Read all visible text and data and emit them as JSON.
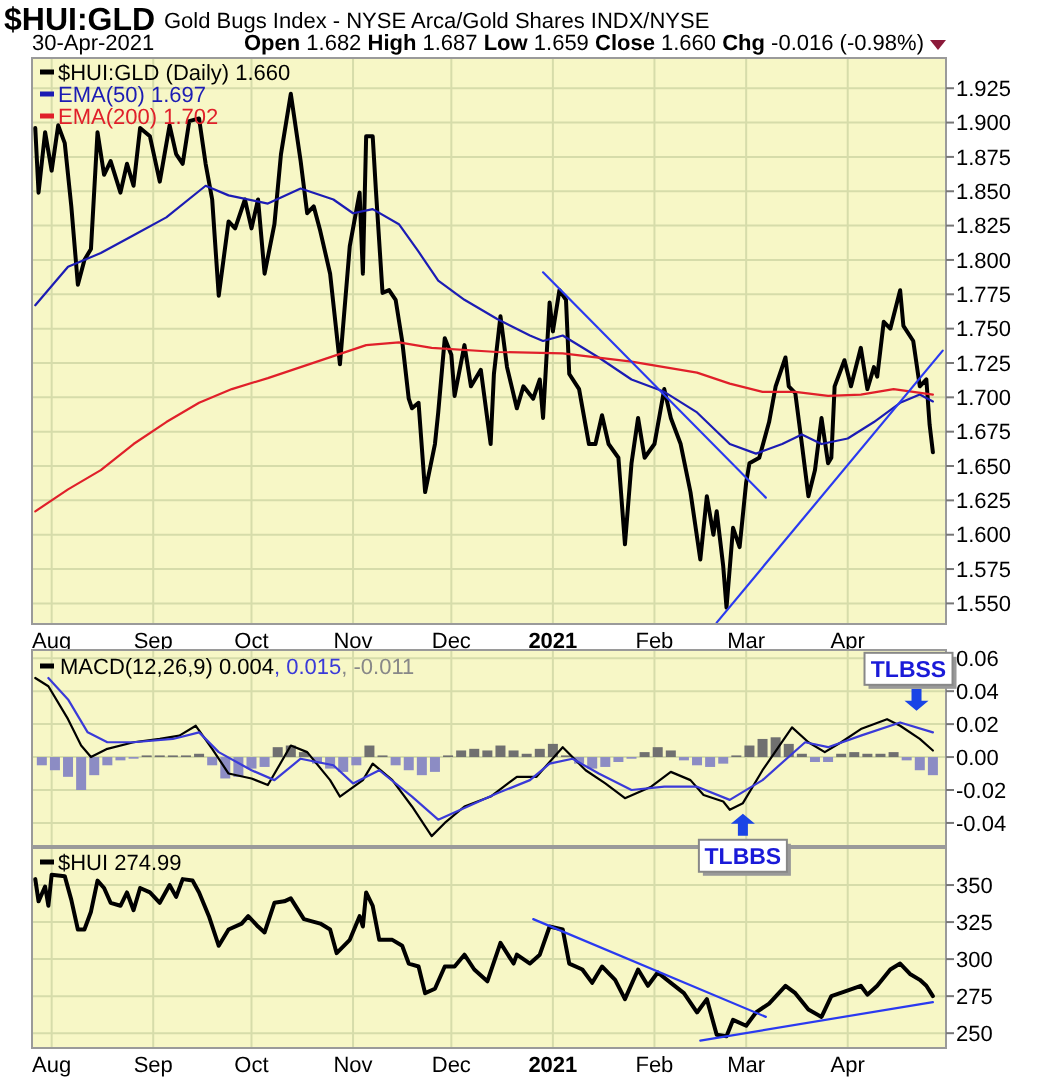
{
  "chart_data": [
    {
      "type": "line",
      "title": "$HUI:GLD",
      "subtitle": "Gold Bugs Index - NYSE Arca/Gold Shares INDX/NYSE",
      "annotations": [
        "30-Apr-2021",
        "Open 1.682 High 1.687 Low 1.659 Close 1.660 Chg -0.016 (-0.98%)"
      ],
      "xlim": [
        "2020-07-26",
        "2021-05-01"
      ],
      "xticks": [
        {
          "value": "2020-08-01",
          "label": "Aug"
        },
        {
          "value": "2020-09-01",
          "label": "Sep"
        },
        {
          "value": "2020-10-01",
          "label": "Oct"
        },
        {
          "value": "2020-11-01",
          "label": "Nov"
        },
        {
          "value": "2020-12-01",
          "label": "Dec"
        },
        {
          "value": "2021-01-01",
          "label": "2021"
        },
        {
          "value": "2021-02-01",
          "label": "Feb"
        },
        {
          "value": "2021-03-01",
          "label": "Mar"
        },
        {
          "value": "2021-04-01",
          "label": "Apr"
        }
      ],
      "ylim": [
        1.535,
        1.947
      ],
      "yticks": [
        {
          "value": 1.55,
          "label": "1.550"
        },
        1.575,
        {
          "value": 1.6,
          "label": "1.600"
        },
        1.625,
        {
          "value": 1.65,
          "label": "1.650"
        },
        1.675,
        {
          "value": 1.7,
          "label": "1.700"
        },
        1.725,
        {
          "value": 1.75,
          "label": "1.750"
        },
        1.775,
        {
          "value": 1.8,
          "label": "1.800"
        },
        1.825,
        {
          "value": 1.85,
          "label": "1.850"
        },
        1.875,
        {
          "value": 1.9,
          "label": "1.900"
        },
        1.925
      ],
      "grid": true,
      "legend": "top left",
      "series": [
        {
          "name": "$HUI:GLD (Daily) 1.660",
          "color": "#000000",
          "x": [
            "2020-07-27",
            "2020-07-28",
            "2020-07-30",
            "2020-08-01",
            "2020-08-03",
            "2020-08-05",
            "2020-08-07",
            "2020-08-09",
            "2020-08-11",
            "2020-08-13",
            "2020-08-15",
            "2020-08-17",
            "2020-08-19",
            "2020-08-22",
            "2020-08-24",
            "2020-08-26",
            "2020-08-28",
            "2020-08-31",
            "2020-09-03",
            "2020-09-06",
            "2020-09-08",
            "2020-09-10",
            "2020-09-12",
            "2020-09-15",
            "2020-09-17",
            "2020-09-19",
            "2020-09-21",
            "2020-09-24",
            "2020-09-26",
            "2020-09-29",
            "2020-10-01",
            "2020-10-03",
            "2020-10-05",
            "2020-10-08",
            "2020-10-10",
            "2020-10-13",
            "2020-10-16",
            "2020-10-18",
            "2020-10-20",
            "2020-10-22",
            "2020-10-25",
            "2020-10-28",
            "2020-10-31",
            "2020-11-03",
            "2020-11-04",
            "2020-11-05",
            "2020-11-07",
            "2020-11-08",
            "2020-11-10",
            "2020-11-12",
            "2020-11-14",
            "2020-11-16",
            "2020-11-18",
            "2020-11-19",
            "2020-11-21",
            "2020-11-23",
            "2020-11-26",
            "2020-11-27",
            "2020-11-29",
            "2020-12-01",
            "2020-12-02",
            "2020-12-05",
            "2020-12-07",
            "2020-12-10",
            "2020-12-13",
            "2020-12-14",
            "2020-12-16",
            "2020-12-18",
            "2020-12-21",
            "2020-12-23",
            "2020-12-26",
            "2020-12-28",
            "2020-12-29",
            "2020-12-31",
            "2021-01-01",
            "2021-01-03",
            "2021-01-05",
            "2021-01-06",
            "2021-01-09",
            "2021-01-12",
            "2021-01-14",
            "2021-01-16",
            "2021-01-18",
            "2021-01-21",
            "2021-01-23",
            "2021-01-25",
            "2021-01-27",
            "2021-01-29",
            "2021-02-01",
            "2021-02-04",
            "2021-02-06",
            "2021-02-09",
            "2021-02-12",
            "2021-02-15",
            "2021-02-17",
            "2021-02-19",
            "2021-02-20",
            "2021-02-22",
            "2021-02-23",
            "2021-02-25",
            "2021-02-27",
            "2021-03-01",
            "2021-03-02",
            "2021-03-05",
            "2021-03-08",
            "2021-03-10",
            "2021-03-13",
            "2021-03-14",
            "2021-03-16",
            "2021-03-18",
            "2021-03-20",
            "2021-03-22",
            "2021-03-24",
            "2021-03-26",
            "2021-03-27",
            "2021-03-28",
            "2021-03-31",
            "2021-04-02",
            "2021-04-05",
            "2021-04-07",
            "2021-04-09",
            "2021-04-10",
            "2021-04-12",
            "2021-04-14",
            "2021-04-17",
            "2021-04-18",
            "2021-04-21",
            "2021-04-23",
            "2021-04-25",
            "2021-04-26",
            "2021-04-27"
          ],
          "values": [
            1.896,
            1.849,
            1.893,
            1.865,
            1.898,
            1.885,
            1.839,
            1.782,
            1.8,
            1.808,
            1.893,
            1.862,
            1.872,
            1.849,
            1.87,
            1.854,
            1.896,
            1.89,
            1.857,
            1.898,
            1.877,
            1.87,
            1.901,
            1.903,
            1.87,
            1.844,
            1.774,
            1.828,
            1.823,
            1.844,
            1.823,
            1.844,
            1.79,
            1.826,
            1.877,
            1.921,
            1.872,
            1.834,
            1.839,
            1.821,
            1.79,
            1.724,
            1.81,
            1.849,
            1.79,
            1.89,
            1.89,
            1.85,
            1.776,
            1.778,
            1.771,
            1.741,
            1.699,
            1.692,
            1.696,
            1.631,
            1.666,
            1.689,
            1.743,
            1.731,
            1.701,
            1.738,
            1.708,
            1.72,
            1.666,
            1.717,
            1.759,
            1.722,
            1.692,
            1.708,
            1.699,
            1.713,
            1.685,
            1.769,
            1.748,
            1.778,
            1.771,
            1.717,
            1.706,
            1.666,
            1.666,
            1.687,
            1.666,
            1.656,
            1.593,
            1.652,
            1.685,
            1.656,
            1.666,
            1.706,
            1.685,
            1.666,
            1.631,
            1.582,
            1.628,
            1.6,
            1.617,
            1.577,
            1.547,
            1.605,
            1.591,
            1.638,
            1.652,
            1.656,
            1.682,
            1.708,
            1.729,
            1.708,
            1.703,
            1.666,
            1.628,
            1.647,
            1.685,
            1.652,
            1.656,
            1.708,
            1.727,
            1.708,
            1.736,
            1.706,
            1.722,
            1.715,
            1.755,
            1.75,
            1.778,
            1.752,
            1.741,
            1.708,
            1.713,
            1.68,
            1.66
          ]
        },
        {
          "name": "EMA(50) 1.697",
          "color": "#1c1cb4",
          "x": [
            "2020-07-27",
            "2020-08-06",
            "2020-08-16",
            "2020-08-26",
            "2020-09-05",
            "2020-09-17",
            "2020-09-24",
            "2020-10-06",
            "2020-10-16",
            "2020-10-26",
            "2020-11-01",
            "2020-11-07",
            "2020-11-15",
            "2020-11-21",
            "2020-11-27",
            "2020-12-05",
            "2020-12-15",
            "2020-12-25",
            "2020-12-29",
            "2021-01-04",
            "2021-01-15",
            "2021-01-25",
            "2021-02-04",
            "2021-02-14",
            "2021-02-24",
            "2021-03-04",
            "2021-03-12",
            "2021-03-18",
            "2021-03-24",
            "2021-04-01",
            "2021-04-09",
            "2021-04-17",
            "2021-04-23",
            "2021-04-27"
          ],
          "values": [
            1.767,
            1.795,
            1.805,
            1.818,
            1.831,
            1.854,
            1.847,
            1.841,
            1.852,
            1.844,
            1.834,
            1.837,
            1.826,
            1.806,
            1.785,
            1.771,
            1.757,
            1.745,
            1.741,
            1.745,
            1.729,
            1.713,
            1.704,
            1.689,
            1.666,
            1.659,
            1.666,
            1.673,
            1.666,
            1.67,
            1.682,
            1.696,
            1.702,
            1.697
          ]
        },
        {
          "name": "EMA(200) 1.702",
          "color": "#e0202a",
          "x": [
            "2020-07-27",
            "2020-08-06",
            "2020-08-16",
            "2020-08-26",
            "2020-09-05",
            "2020-09-15",
            "2020-09-25",
            "2020-10-06",
            "2020-10-16",
            "2020-10-26",
            "2020-11-05",
            "2020-11-15",
            "2020-11-25",
            "2020-12-15",
            "2021-01-04",
            "2021-01-25",
            "2021-02-14",
            "2021-02-24",
            "2021-03-06",
            "2021-03-16",
            "2021-03-26",
            "2021-04-05",
            "2021-04-15",
            "2021-04-27"
          ],
          "values": [
            1.617,
            1.633,
            1.647,
            1.666,
            1.682,
            1.696,
            1.706,
            1.714,
            1.722,
            1.73,
            1.738,
            1.74,
            1.736,
            1.733,
            1.732,
            1.726,
            1.718,
            1.71,
            1.704,
            1.704,
            1.701,
            1.702,
            1.706,
            1.702
          ]
        },
        {
          "type": "line",
          "color": "#2a3af0",
          "x": [
            "2020-12-29",
            "2021-03-07"
          ],
          "values": [
            1.791,
            1.627
          ]
        },
        {
          "type": "line",
          "color": "#2a3af0",
          "x": [
            "2021-02-20",
            "2021-04-30"
          ],
          "values": [
            1.536,
            1.734
          ]
        }
      ]
    },
    {
      "type": "line",
      "tick_labels": "y",
      "legend": "top left",
      "grid": true,
      "xlim": [
        "2020-07-26",
        "2021-05-01"
      ],
      "xticks": [
        {
          "value": "2020-08-01",
          "label": null
        },
        {
          "value": "2020-09-01",
          "label": null
        },
        {
          "value": "2020-10-01",
          "label": null
        },
        {
          "value": "2020-11-01",
          "label": null
        },
        {
          "value": "2020-12-01",
          "label": null
        },
        {
          "value": "2021-01-01",
          "label": null
        },
        {
          "value": "2021-02-01",
          "label": null
        },
        {
          "value": "2021-03-01",
          "label": null
        },
        {
          "value": "2021-04-01",
          "label": null
        }
      ],
      "ylim": [
        -0.054,
        0.065
      ],
      "yticks": [
        -0.04,
        -0.02,
        {
          "value": 0,
          "label": "0.00"
        },
        0.02,
        0.04,
        0.06
      ],
      "annotations": [
        {
          "text": "TLBSS",
          "x": "2021-04-22",
          "y": 0.022
        },
        {
          "text": "TLBBS",
          "x": "2021-02-28",
          "y": -0.032
        }
      ],
      "series": [
        {
          "type": "bar",
          "name": ", -0.011",
          "color": "#707070",
          "x": [
            "2020-08-30",
            "2020-09-03",
            "2020-09-07",
            "2020-09-11",
            "2020-09-15",
            "2020-10-09",
            "2020-10-13",
            "2020-10-17",
            "2020-11-06",
            "2020-11-10",
            "2020-11-30",
            "2020-12-04",
            "2020-12-08",
            "2020-12-12",
            "2020-12-16",
            "2020-12-20",
            "2020-12-24",
            "2020-12-28",
            "2021-01-01",
            "2021-01-05",
            "2021-01-29",
            "2021-02-02",
            "2021-02-06",
            "2021-02-26",
            "2021-03-02",
            "2021-03-06",
            "2021-03-10",
            "2021-03-14",
            "2021-03-18",
            "2021-03-30",
            "2021-04-03",
            "2021-04-07",
            "2021-04-11",
            "2021-04-15"
          ],
          "values": [
            0.001,
            0.001,
            0.001,
            0.001,
            0.002,
            0.006,
            0.007,
            0.003,
            0.007,
            0.001,
            0.001,
            0.004,
            0.005,
            0.004,
            0.007,
            0.004,
            0.002,
            0.005,
            0.008,
            0.001,
            0.003,
            0.006,
            0.004,
            0.001,
            0.007,
            0.011,
            0.012,
            0.008,
            0.002,
            0.002,
            0.003,
            0.002,
            0.002,
            0.003
          ]
        },
        {
          "type": "bar",
          "color": "#8c8cc4",
          "x": [
            "2020-07-29",
            "2020-08-02",
            "2020-08-06",
            "2020-08-10",
            "2020-08-14",
            "2020-08-18",
            "2020-08-22",
            "2020-08-26",
            "2020-09-19",
            "2020-09-23",
            "2020-09-27",
            "2020-10-01",
            "2020-10-05",
            "2020-10-21",
            "2020-10-25",
            "2020-10-29",
            "2020-11-02",
            "2020-11-14",
            "2020-11-18",
            "2020-11-22",
            "2020-11-26",
            "2021-01-09",
            "2021-01-13",
            "2021-01-17",
            "2021-01-21",
            "2021-01-25",
            "2021-02-10",
            "2021-02-14",
            "2021-02-18",
            "2021-02-22",
            "2021-03-22",
            "2021-03-26",
            "2021-04-19",
            "2021-04-23",
            "2021-04-27"
          ],
          "values": [
            -0.005,
            -0.008,
            -0.012,
            -0.02,
            -0.011,
            -0.005,
            -0.002,
            -0.001,
            -0.005,
            -0.013,
            -0.012,
            -0.007,
            -0.006,
            -0.004,
            -0.007,
            -0.009,
            -0.005,
            -0.005,
            -0.008,
            -0.011,
            -0.009,
            -0.004,
            -0.007,
            -0.006,
            -0.003,
            -0.001,
            -0.002,
            -0.005,
            -0.006,
            -0.004,
            -0.003,
            -0.003,
            -0.002,
            -0.008,
            -0.011
          ]
        },
        {
          "type": "line",
          "name": "MACD(12,26,9) 0.004",
          "color": "#000000",
          "x": [
            "2020-07-27",
            "2020-07-31",
            "2020-08-06",
            "2020-08-10",
            "2020-08-13",
            "2020-08-18",
            "2020-08-26",
            "2020-09-03",
            "2020-09-09",
            "2020-09-14",
            "2020-09-19",
            "2020-09-24",
            "2020-10-01",
            "2020-10-06",
            "2020-10-13",
            "2020-10-18",
            "2020-10-25",
            "2020-10-28",
            "2020-11-04",
            "2020-11-07",
            "2020-11-13",
            "2020-11-19",
            "2020-11-25",
            "2020-11-29",
            "2020-12-05",
            "2020-12-13",
            "2020-12-21",
            "2020-12-27",
            "2021-01-04",
            "2021-01-11",
            "2021-01-17",
            "2021-01-23",
            "2021-01-31",
            "2021-02-06",
            "2021-02-12",
            "2021-02-16",
            "2021-02-22",
            "2021-02-24",
            "2021-02-28",
            "2021-03-06",
            "2021-03-15",
            "2021-03-20",
            "2021-03-25",
            "2021-03-30",
            "2021-04-05",
            "2021-04-13",
            "2021-04-17",
            "2021-04-23",
            "2021-04-27"
          ],
          "values": [
            0.048,
            0.043,
            0.023,
            0.007,
            0.0,
            0.005,
            0.009,
            0.011,
            0.013,
            0.019,
            0.005,
            -0.01,
            -0.013,
            -0.017,
            0.007,
            0.003,
            -0.014,
            -0.024,
            -0.014,
            -0.004,
            -0.014,
            -0.03,
            -0.048,
            -0.04,
            -0.03,
            -0.024,
            -0.012,
            -0.012,
            0.006,
            -0.008,
            -0.016,
            -0.025,
            -0.018,
            -0.009,
            -0.014,
            -0.023,
            -0.027,
            -0.032,
            -0.028,
            -0.008,
            0.018,
            0.009,
            0.003,
            0.009,
            0.017,
            0.023,
            0.019,
            0.011,
            0.004
          ]
        },
        {
          "type": "line",
          "name": ", 0.015",
          "color": "#3a3ad8",
          "x": [
            "2020-07-31",
            "2020-08-06",
            "2020-08-12",
            "2020-08-18",
            "2020-08-26",
            "2020-09-07",
            "2020-09-15",
            "2020-09-21",
            "2020-10-01",
            "2020-10-08",
            "2020-10-16",
            "2020-10-26",
            "2020-11-01",
            "2020-11-09",
            "2020-11-19",
            "2020-11-27",
            "2020-12-05",
            "2020-12-15",
            "2020-12-25",
            "2020-12-31",
            "2021-01-07",
            "2021-01-15",
            "2021-01-25",
            "2021-02-04",
            "2021-02-14",
            "2021-02-24",
            "2021-03-06",
            "2021-03-19",
            "2021-03-26",
            "2021-04-05",
            "2021-04-17",
            "2021-04-27"
          ],
          "values": [
            0.048,
            0.035,
            0.015,
            0.009,
            0.009,
            0.011,
            0.015,
            0.003,
            -0.008,
            -0.014,
            -0.001,
            -0.005,
            -0.016,
            -0.008,
            -0.024,
            -0.038,
            -0.031,
            -0.022,
            -0.014,
            -0.004,
            -0.001,
            -0.01,
            -0.02,
            -0.018,
            -0.018,
            -0.026,
            -0.014,
            0.009,
            0.006,
            0.013,
            0.021,
            0.015
          ]
        }
      ]
    },
    {
      "type": "line",
      "legend": "top left",
      "grid": true,
      "xlim": [
        "2020-07-26",
        "2021-05-01"
      ],
      "xticks": [
        {
          "value": "2020-08-01",
          "label": "Aug"
        },
        {
          "value": "2020-09-01",
          "label": "Sep"
        },
        {
          "value": "2020-10-01",
          "label": "Oct"
        },
        {
          "value": "2020-11-01",
          "label": "Nov"
        },
        {
          "value": "2020-12-01",
          "label": "Dec"
        },
        {
          "value": "2021-01-01",
          "label": "2021"
        },
        {
          "value": "2021-02-01",
          "label": "Feb"
        },
        {
          "value": "2021-03-01",
          "label": "Mar"
        },
        {
          "value": "2021-04-01",
          "label": "Apr"
        }
      ],
      "ylim": [
        240,
        375
      ],
      "yticks": [
        250,
        275,
        300,
        325,
        350
      ],
      "series": [
        {
          "name": "$HUI 274.99",
          "color": "#000000",
          "x": [
            "2020-07-27",
            "2020-07-28",
            "2020-07-30",
            "2020-07-31",
            "2020-08-01",
            "2020-08-05",
            "2020-08-07",
            "2020-08-09",
            "2020-08-11",
            "2020-08-13",
            "2020-08-15",
            "2020-08-17",
            "2020-08-19",
            "2020-08-22",
            "2020-08-24",
            "2020-08-26",
            "2020-08-28",
            "2020-08-31",
            "2020-09-03",
            "2020-09-06",
            "2020-09-08",
            "2020-09-10",
            "2020-09-13",
            "2020-09-15",
            "2020-09-18",
            "2020-09-21",
            "2020-09-24",
            "2020-09-28",
            "2020-09-30",
            "2020-10-03",
            "2020-10-05",
            "2020-10-08",
            "2020-10-11",
            "2020-10-13",
            "2020-10-17",
            "2020-10-22",
            "2020-10-25",
            "2020-10-27",
            "2020-10-31",
            "2020-11-03",
            "2020-11-04",
            "2020-11-05",
            "2020-11-07",
            "2020-11-09",
            "2020-11-13",
            "2020-11-16",
            "2020-11-18",
            "2020-11-21",
            "2020-11-23",
            "2020-11-26",
            "2020-11-29",
            "2020-12-02",
            "2020-12-05",
            "2020-12-08",
            "2020-12-12",
            "2020-12-16",
            "2020-12-20",
            "2020-12-21",
            "2020-12-25",
            "2020-12-28",
            "2020-12-31",
            "2021-01-04",
            "2021-01-06",
            "2021-01-10",
            "2021-01-13",
            "2021-01-16",
            "2021-01-20",
            "2021-01-23",
            "2021-01-27",
            "2021-01-30",
            "2021-02-02",
            "2021-02-06",
            "2021-02-10",
            "2021-02-14",
            "2021-02-17",
            "2021-02-20",
            "2021-02-23",
            "2021-02-25",
            "2021-03-01",
            "2021-03-04",
            "2021-03-08",
            "2021-03-13",
            "2021-03-16",
            "2021-03-20",
            "2021-03-24",
            "2021-03-27",
            "2021-03-31",
            "2021-04-05",
            "2021-04-07",
            "2021-04-10",
            "2021-04-14",
            "2021-04-17",
            "2021-04-20",
            "2021-04-23",
            "2021-04-25",
            "2021-04-27"
          ],
          "values": [
            354,
            339,
            349,
            336,
            357,
            356,
            340,
            320,
            320,
            332,
            353,
            348,
            338,
            336,
            345,
            333,
            348,
            345,
            338,
            350,
            342,
            354,
            353,
            345,
            329,
            309,
            320,
            324,
            329,
            322,
            318,
            338,
            339,
            341,
            327,
            324,
            320,
            304,
            313,
            329,
            322,
            345,
            336,
            313,
            313,
            309,
            297,
            295,
            277,
            280,
            295,
            295,
            303,
            293,
            285,
            311,
            297,
            303,
            297,
            303,
            322,
            320,
            297,
            293,
            284,
            295,
            286,
            273,
            293,
            282,
            291,
            284,
            277,
            264,
            273,
            249,
            248,
            259,
            255,
            264,
            270,
            282,
            277,
            266,
            261,
            275,
            278,
            282,
            276,
            282,
            293,
            297,
            290,
            286,
            282,
            275
          ]
        },
        {
          "type": "line",
          "color": "#2a3af0",
          "x": [
            "2020-12-26",
            "2021-03-07"
          ],
          "values": [
            327,
            261
          ]
        },
        {
          "type": "line",
          "color": "#2a3af0",
          "x": [
            "2021-02-15",
            "2021-04-27"
          ],
          "values": [
            245,
            271
          ]
        }
      ]
    }
  ]
}
